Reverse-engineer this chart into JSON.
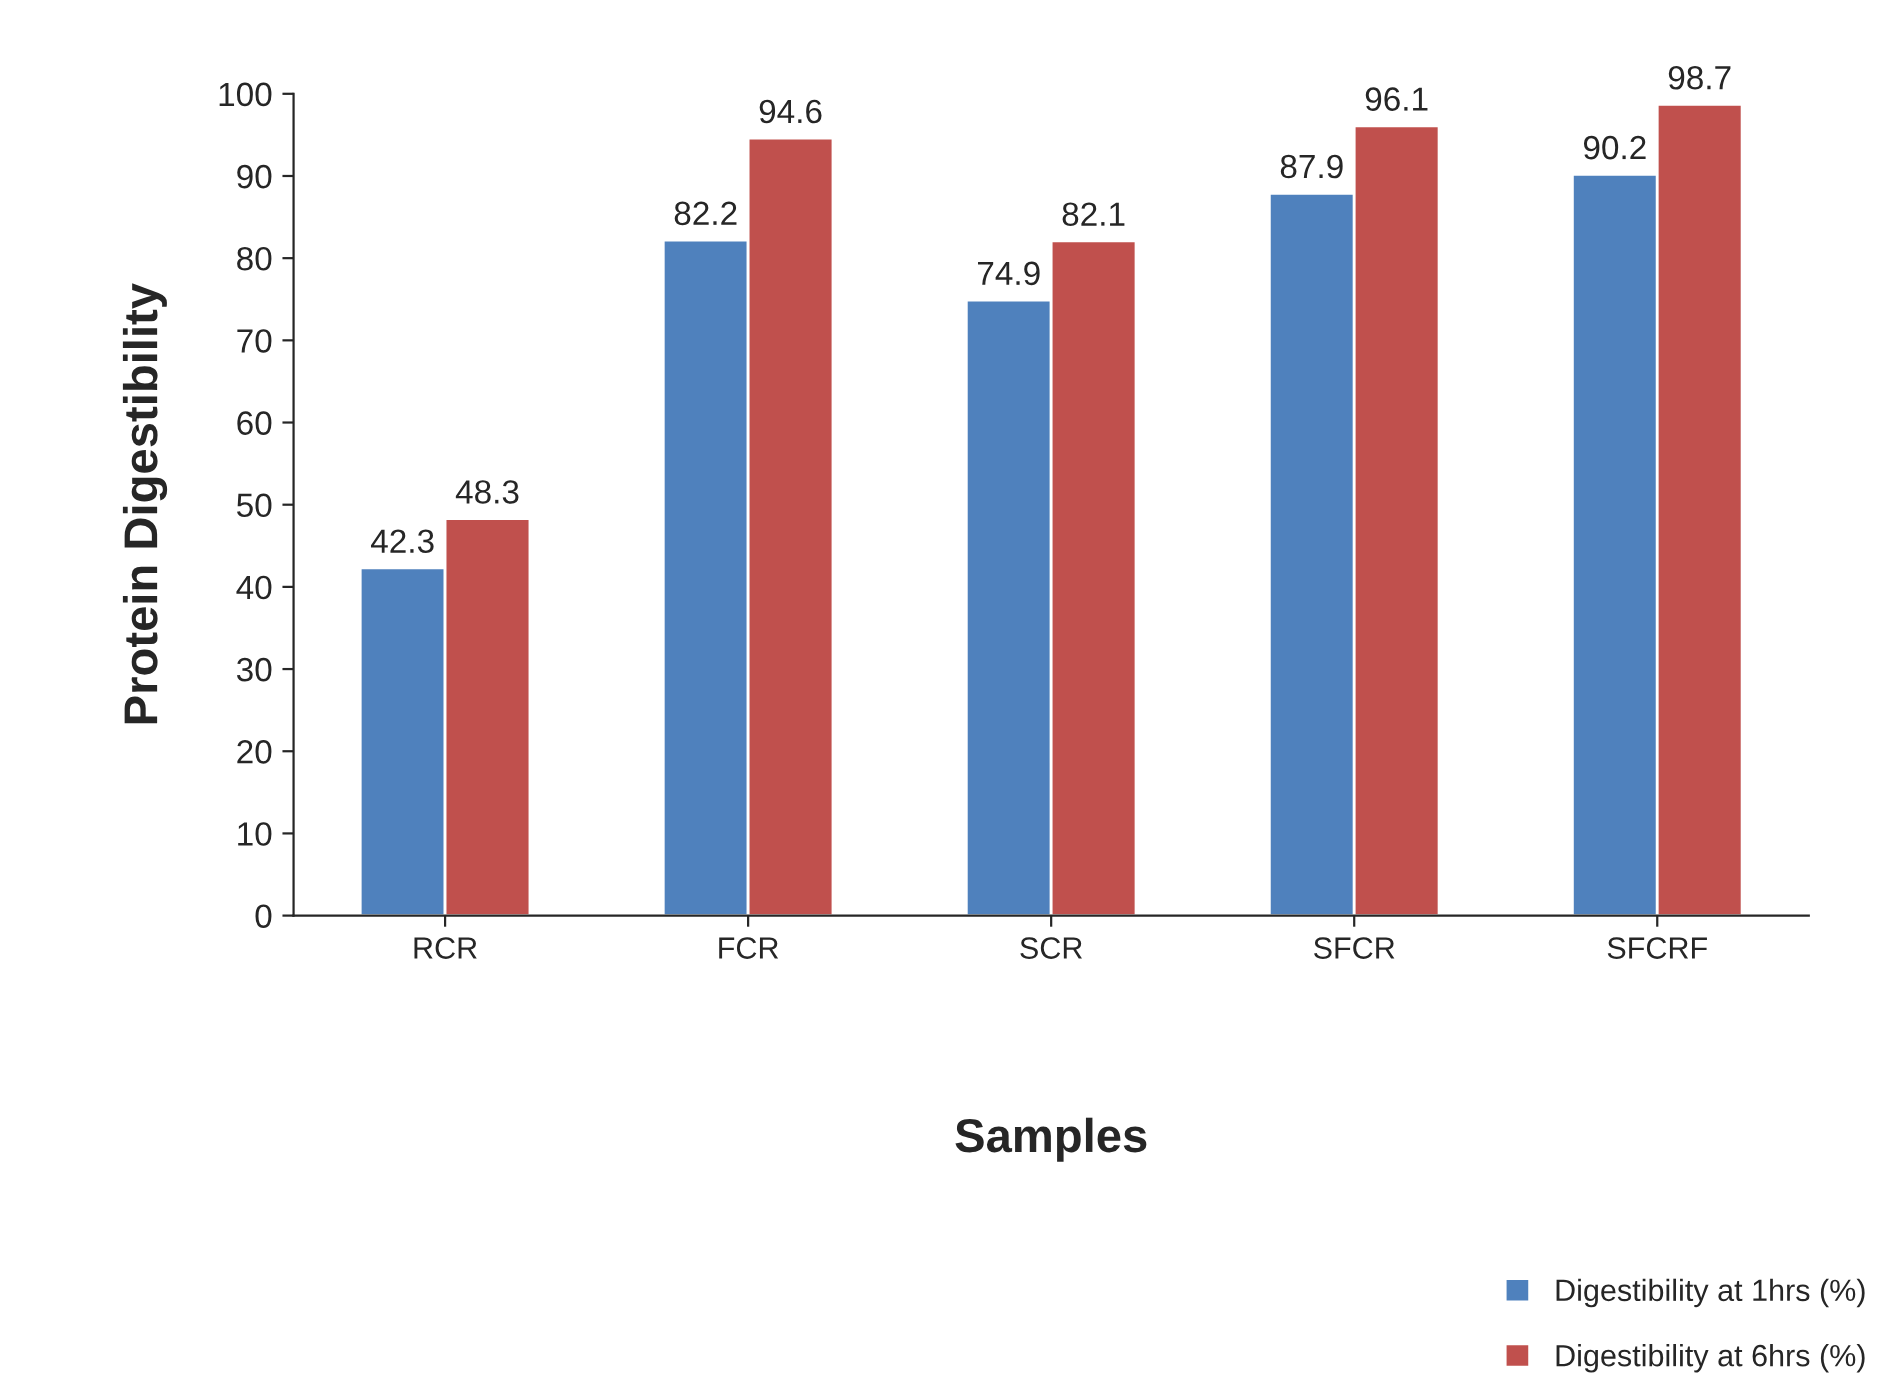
{
  "chart_data": {
    "type": "bar",
    "xlabel": "Samples",
    "ylabel": "Protein Digestibility",
    "categories": [
      "RCR",
      "FCR",
      "SCR",
      "SFCR",
      "SFCRF"
    ],
    "series": [
      {
        "name": "Digestibility at 1hrs (%)",
        "color": "#4f81bd",
        "values": [
          42.3,
          82.2,
          74.9,
          87.9,
          90.2
        ]
      },
      {
        "name": "Digestibility at 6hrs (%)",
        "color": "#c0504d",
        "values": [
          48.3,
          94.6,
          82.1,
          96.1,
          98.7
        ]
      }
    ],
    "ylim": [
      0,
      100
    ],
    "yticks": [
      0,
      10,
      20,
      30,
      40,
      50,
      60,
      70,
      80,
      90,
      100
    ],
    "data_labels": true,
    "legend": "bottom right",
    "grid": false
  }
}
